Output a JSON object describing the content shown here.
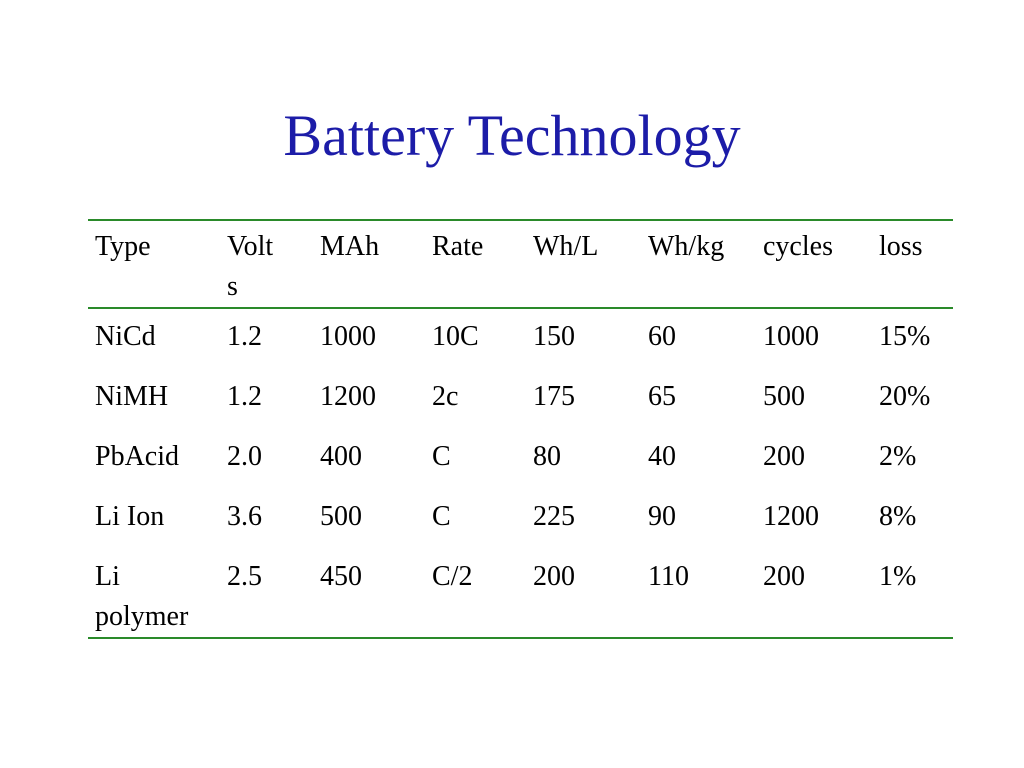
{
  "title": "Battery Technology",
  "table": {
    "header": [
      "Type",
      "Volts",
      "MAh",
      "Rate",
      "Wh/L",
      "Wh/kg",
      "cycles",
      "loss"
    ],
    "rows": [
      [
        "NiCd",
        "1.2",
        "1000",
        "10C",
        "150",
        "60",
        "1000",
        "15%"
      ],
      [
        "NiMH",
        "1.2",
        "1200",
        "2c",
        "175",
        "65",
        "500",
        "20%"
      ],
      [
        "PbAcid",
        "2.0",
        "400",
        "C",
        "80",
        "40",
        "200",
        "2%"
      ],
      [
        "Li Ion",
        "3.6",
        "500",
        "C",
        "225",
        "90",
        "1200",
        "8%"
      ],
      [
        "Li polymer",
        "2.5",
        "450",
        "C/2",
        "200",
        "110",
        "200",
        "1%"
      ]
    ]
  }
}
